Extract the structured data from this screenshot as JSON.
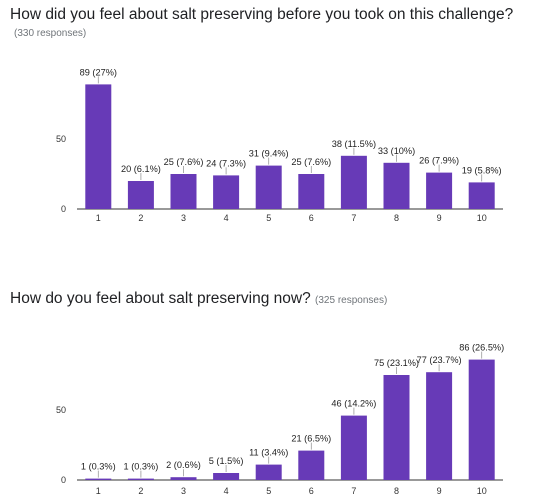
{
  "chart_data": [
    {
      "type": "bar",
      "title": "How did you feel about salt preserving before you took on this challenge?",
      "subtitle": "(330 responses)",
      "categories": [
        "1",
        "2",
        "3",
        "4",
        "5",
        "6",
        "7",
        "8",
        "9",
        "10"
      ],
      "values": [
        89,
        20,
        25,
        24,
        31,
        25,
        38,
        33,
        26,
        19
      ],
      "data_labels": [
        "89 (27%)",
        "20 (6.1%)",
        "25 (7.6%)",
        "24 (7.3%)",
        "31 (9.4%)",
        "25 (7.6%)",
        "38 (11.5%)",
        "33 (10%)",
        "26 (7.9%)",
        "19 (5.8%)"
      ],
      "y_ticks": [
        "0",
        "50"
      ],
      "ylim": [
        0,
        90
      ],
      "grid": false,
      "bar_color": "#673ab7"
    },
    {
      "type": "bar",
      "title": "How do you feel about salt preserving now?",
      "subtitle": "(325 responses)",
      "categories": [
        "1",
        "2",
        "3",
        "4",
        "5",
        "6",
        "7",
        "8",
        "9",
        "10"
      ],
      "values": [
        1,
        1,
        2,
        5,
        11,
        21,
        46,
        75,
        77,
        86
      ],
      "data_labels": [
        "1 (0.3%)",
        "1 (0.3%)",
        "2 (0.6%)",
        "5 (1.5%)",
        "11 (3.4%)",
        "21 (6.5%)",
        "46 (14.2%)",
        "75 (23.1%)",
        "77 (23.7%)",
        "86 (26.5%)"
      ],
      "y_ticks": [
        "0",
        "50"
      ],
      "ylim": [
        0,
        90
      ],
      "grid": false,
      "bar_color": "#673ab7"
    }
  ]
}
